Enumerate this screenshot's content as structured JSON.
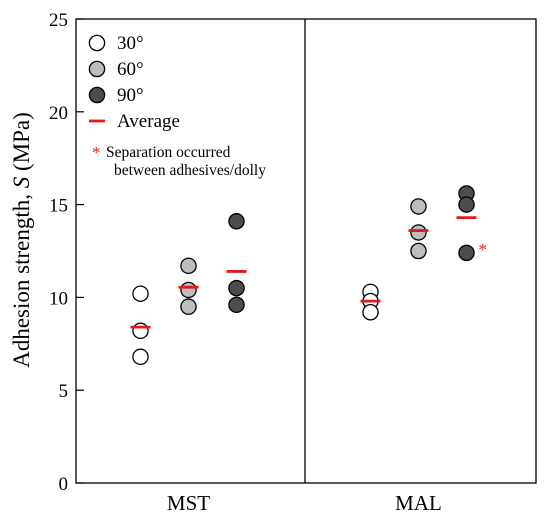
{
  "chart_data": {
    "type": "scatter",
    "ylabel": "Adhesion strength, S (MPa)",
    "ylabel_prefix": "Adhesion strength,",
    "ylabel_var": "S",
    "ylabel_unit": "(MPa)",
    "ylim": [
      0,
      25
    ],
    "yticks": [
      "0",
      "5",
      "10",
      "15",
      "20",
      "25"
    ],
    "panels": [
      {
        "label": "MST",
        "groups": [
          {
            "series": "30°",
            "points": [
              10.2,
              8.2,
              6.8
            ],
            "average": 8.4
          },
          {
            "series": "60°",
            "points": [
              11.7,
              10.4,
              9.5
            ],
            "average": 10.55
          },
          {
            "series": "90°",
            "points": [
              14.1,
              10.5,
              9.6
            ],
            "average": 11.4
          }
        ]
      },
      {
        "label": "MAL",
        "groups": [
          {
            "series": "30°",
            "points": [
              10.3,
              9.8,
              9.2
            ],
            "average": 9.8
          },
          {
            "series": "60°",
            "points": [
              14.9,
              13.5,
              12.5
            ],
            "average": 13.6
          },
          {
            "series": "90°",
            "points": [
              15.6,
              15.0,
              12.4
            ],
            "average": 14.3,
            "separated_point": 12.4
          }
        ]
      }
    ],
    "series": [
      {
        "name": "30°",
        "fill": "#ffffff"
      },
      {
        "name": "60°",
        "fill": "#bdbdbd"
      },
      {
        "name": "90°",
        "fill": "#4d4d4d"
      }
    ],
    "average_label": "Average",
    "average_color": "#e31a1c",
    "note_marker": "*",
    "note_line1": "Separation occurred",
    "note_line2": "between adhesives/dolly",
    "legend_position": "top-left",
    "grid": false
  }
}
